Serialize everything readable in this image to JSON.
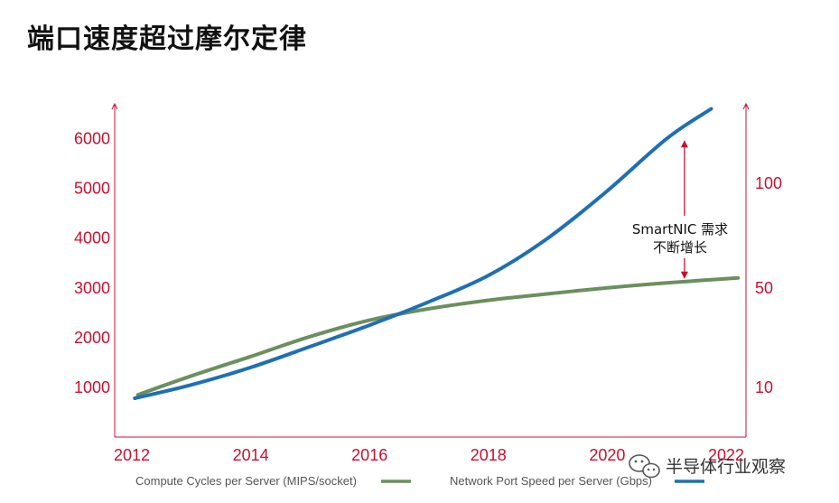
{
  "page": {
    "title": "端口速度超过摩尔定律"
  },
  "chart_data": {
    "type": "line",
    "x_ticks": [
      "2012",
      "2014",
      "2016",
      "2018",
      "2020",
      "2022"
    ],
    "x_range": [
      2012,
      2022
    ],
    "y_left": {
      "ticks": [
        1000,
        2000,
        3000,
        4000,
        5000,
        6000
      ],
      "range": [
        0,
        6700
      ]
    },
    "y_right": {
      "ticks": [
        10,
        50,
        100
      ],
      "tick_values_on_left_scale": [
        1000,
        3000,
        5100
      ]
    },
    "series": [
      {
        "name": "Compute Cycles per Server (MIPS/socket)",
        "axis": "left",
        "color": "#6b8f5e",
        "x": [
          2012.1,
          2013,
          2014,
          2015,
          2016,
          2017,
          2018,
          2019,
          2020,
          2021,
          2022.2
        ],
        "y": [
          850,
          1230,
          1620,
          2020,
          2350,
          2580,
          2750,
          2880,
          3000,
          3100,
          3200
        ]
      },
      {
        "name": "Network Port Speed per Server (Gbps)",
        "axis": "left",
        "color": "#1f6fb2",
        "x": [
          2012.05,
          2013,
          2014,
          2015,
          2016,
          2017,
          2018,
          2019,
          2020,
          2021,
          2021.75
        ],
        "y": [
          780,
          1050,
          1400,
          1820,
          2250,
          2720,
          3250,
          4000,
          4950,
          6000,
          6600
        ]
      }
    ],
    "annotation": {
      "lines": [
        "SmartNIC 需求",
        "不断增长"
      ],
      "x": 2021.3,
      "y_from": 3200,
      "y_to": 5950
    },
    "legend": [
      {
        "label": "Compute Cycles per Server (MIPS/socket)",
        "color": "#6b8f5e"
      },
      {
        "label": "Network Port Speed per Server (Gbps)",
        "color": "#1f6fb2"
      }
    ],
    "axis_color": "#c8102e",
    "grid": false,
    "legend_position": "bottom"
  },
  "watermark": {
    "text": "半导体行业观察"
  }
}
